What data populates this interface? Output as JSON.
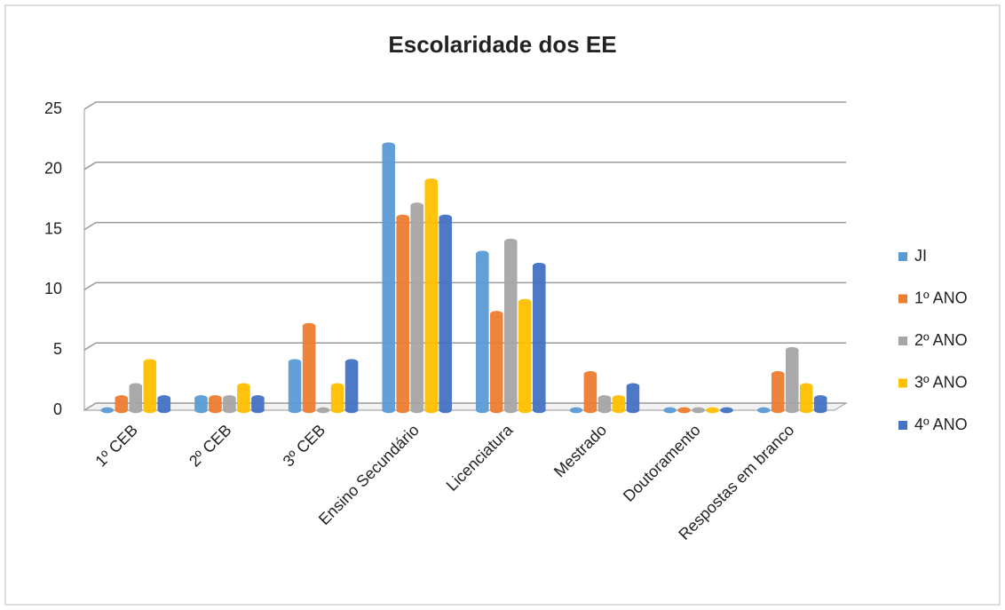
{
  "chart_data": {
    "type": "bar",
    "title": "Escolaridade dos EE",
    "categories": [
      "1º CEB",
      "2º CEB",
      "3º CEB",
      "Ensino Secundário",
      "Licenciatura",
      "Mestrado",
      "Doutoramento",
      "Respostas em branco"
    ],
    "series": [
      {
        "name": "JI",
        "color": "#5b9bd5",
        "values": [
          0,
          1,
          4,
          22,
          13,
          0,
          0,
          0
        ]
      },
      {
        "name": "1º ANO",
        "color": "#ed7d31",
        "values": [
          1,
          1,
          7,
          16,
          8,
          3,
          0,
          3
        ]
      },
      {
        "name": "2º ANO",
        "color": "#a5a5a5",
        "values": [
          2,
          1,
          0,
          17,
          14,
          1,
          0,
          5
        ]
      },
      {
        "name": "3º ANO",
        "color": "#ffc000",
        "values": [
          4,
          2,
          2,
          19,
          9,
          1,
          0,
          2
        ]
      },
      {
        "name": "4º ANO",
        "color": "#4472c4",
        "values": [
          1,
          1,
          4,
          16,
          12,
          2,
          0,
          1
        ]
      }
    ],
    "ylim": [
      0,
      25
    ],
    "yticks": [
      0,
      5,
      10,
      15,
      20,
      25
    ],
    "grid": true,
    "legend": "right"
  }
}
